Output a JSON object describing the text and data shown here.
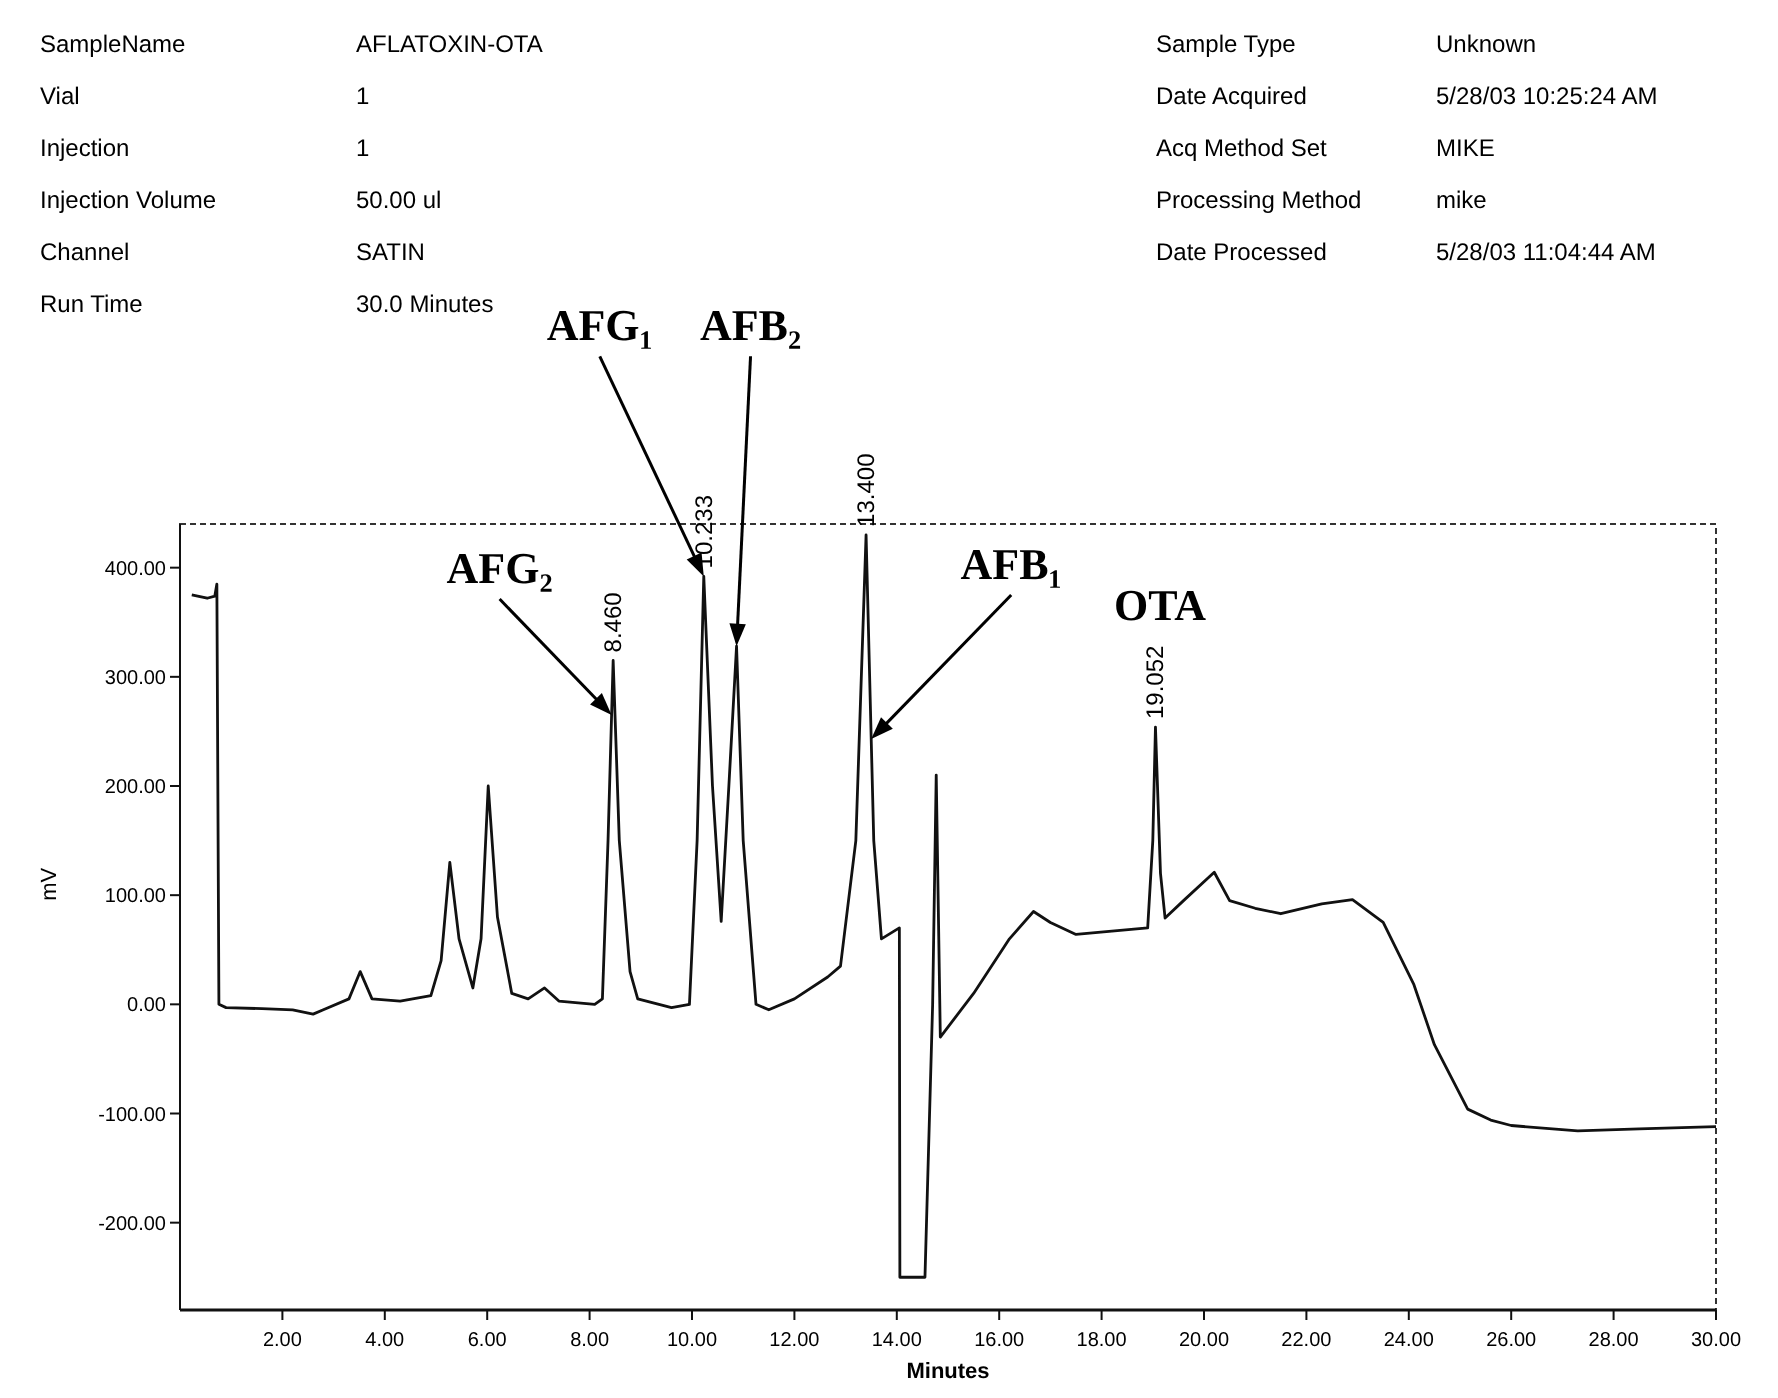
{
  "chart_data": {
    "type": "line",
    "xlabel": "Minutes",
    "ylabel": "mV",
    "x": [
      0.23,
      0.53,
      0.68,
      0.72,
      0.76,
      0.9,
      1.6,
      2.2,
      2.6,
      2.8,
      3.3,
      3.52,
      3.75,
      4.3,
      4.9,
      5.1,
      5.27,
      5.45,
      5.72,
      5.88,
      6.02,
      6.2,
      6.48,
      6.8,
      7.12,
      7.4,
      8.1,
      8.25,
      8.36,
      8.46,
      8.58,
      8.79,
      8.94,
      9.6,
      9.95,
      10.1,
      10.23,
      10.4,
      10.57,
      10.72,
      10.87,
      11.0,
      11.25,
      11.5,
      12.0,
      12.65,
      12.9,
      13.2,
      13.4,
      13.55,
      13.7,
      14.05,
      14.06,
      14.55,
      14.7,
      14.77,
      14.85,
      15.5,
      16.2,
      16.67,
      17.0,
      17.5,
      18.2,
      18.9,
      19.0,
      19.052,
      19.15,
      19.24,
      19.6,
      20.2,
      20.5,
      21.0,
      21.5,
      22.3,
      22.9,
      23.5,
      24.1,
      24.5,
      25.15,
      25.6,
      26.0,
      27.3,
      28.5,
      30.0
    ],
    "series": [
      {
        "color": "#111111",
        "values": [
          375,
          372,
          374,
          385,
          0,
          -3,
          -4,
          -5,
          -9,
          -5,
          5,
          30,
          5,
          3,
          8,
          40,
          130,
          60,
          15,
          60,
          200,
          80,
          10,
          5,
          15,
          3,
          0,
          5,
          150,
          315,
          150,
          30,
          5,
          -3,
          0,
          150,
          392,
          200,
          76,
          200,
          328,
          150,
          0,
          -5,
          5,
          25,
          35,
          150,
          430,
          150,
          60,
          70,
          -250,
          -250,
          0,
          210,
          -30,
          10,
          60,
          85,
          75,
          64,
          67,
          70,
          150,
          254,
          120,
          79,
          95,
          121,
          95,
          88,
          83,
          92,
          96,
          75,
          18,
          -37,
          -96,
          -106,
          -111,
          -116,
          -114,
          -112
        ]
      }
    ],
    "xlim": [
      0,
      30
    ],
    "xticks": [
      {
        "value": 2,
        "label": "2.00"
      },
      {
        "value": 4,
        "label": "4.00"
      },
      {
        "value": 6,
        "label": "6.00"
      },
      {
        "value": 8,
        "label": "8.00"
      },
      {
        "value": 10,
        "label": "10.00"
      },
      {
        "value": 12,
        "label": "12.00"
      },
      {
        "value": 14,
        "label": "14.00"
      },
      {
        "value": 16,
        "label": "16.00"
      },
      {
        "value": 18,
        "label": "18.00"
      },
      {
        "value": 20,
        "label": "20.00"
      },
      {
        "value": 22,
        "label": "22.00"
      },
      {
        "value": 24,
        "label": "24.00"
      },
      {
        "value": 26,
        "label": "26.00"
      },
      {
        "value": 28,
        "label": "28.00"
      },
      {
        "value": 30,
        "label": "30.00"
      }
    ],
    "ylim": [
      -280,
      440
    ],
    "yticks": [
      {
        "value": -200,
        "label": "-200.00"
      },
      {
        "value": -100,
        "label": "-100.00"
      },
      {
        "value": 0,
        "label": "0.00"
      },
      {
        "value": 100,
        "label": "100.00"
      },
      {
        "value": 200,
        "label": "200.00"
      },
      {
        "value": 300,
        "label": "300.00"
      },
      {
        "value": 400,
        "label": "400.00"
      }
    ],
    "grid": false,
    "annotations": [
      "SampleName",
      "AFLATOXIN-OTA",
      "Sample Type",
      "Unknown",
      "Vial",
      "1",
      "Date Acquired",
      "5/28/03 10:25:24 AM",
      "Injection",
      "1",
      "Acq Method Set",
      "MIKE",
      "Injection Volume",
      "50.00 ul",
      "Processing Method",
      "mike",
      "Channel",
      "SATIN",
      "Date Processed",
      "5/28/03 11:04:44 AM",
      "Run Time",
      "30.0 Minutes",
      "OTA",
      {
        "text": "AFG₂",
        "x": 8.43,
        "y": 265
      },
      {
        "text": "AFG₁",
        "x": 10.23,
        "y": 392
      },
      {
        "text": "AFB₂",
        "x": 10.87,
        "y": 328
      },
      {
        "text": "AFB₁",
        "x": 13.5,
        "y": 243
      },
      {
        "text": "8.460",
        "x": 8.46,
        "y": 315
      },
      {
        "text": "10.233",
        "x": 10.23,
        "y": 392
      },
      {
        "text": "13.400",
        "x": 13.4,
        "y": 430
      },
      {
        "text": "19.052",
        "x": 19.052,
        "y": 254
      }
    ]
  }
}
